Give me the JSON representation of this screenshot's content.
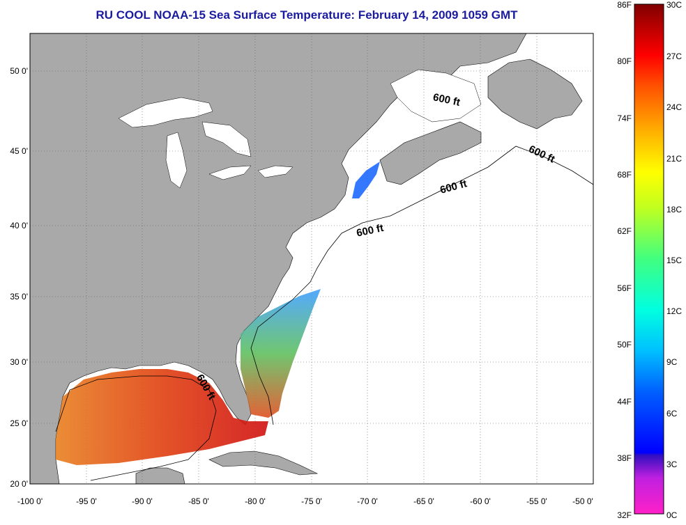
{
  "title": "RU COOL  NOAA-15  Sea Surface Temperature:  February 14, 2009 1059 GMT",
  "map": {
    "lon_range": [
      -100,
      -50
    ],
    "lat_range": [
      20,
      52.5
    ],
    "lon_ticks": [
      "-100 0'",
      "-95 0'",
      "-90 0'",
      "-85 0'",
      "-80 0'",
      "-75 0'",
      "-70 0'",
      "-65 0'",
      "-60 0'",
      "-55 0'",
      "-50 0'"
    ],
    "lat_ticks": [
      "20 0'",
      "25 0'",
      "30 0'",
      "35 0'",
      "40 0'",
      "45 0'",
      "50 0'"
    ],
    "contour_label": "600 ft",
    "colors": {
      "land": "#a9a9a9",
      "ocean": "#ffffff",
      "lakes": "#ffffff"
    }
  },
  "colorbar": {
    "fahrenheit_labels": [
      "86F",
      "80F",
      "74F",
      "68F",
      "62F",
      "56F",
      "50F",
      "44F",
      "38F",
      "32F"
    ],
    "celsius_labels": [
      "30C",
      "27C",
      "24C",
      "21C",
      "18C",
      "15C",
      "12C",
      "9C",
      "6C",
      "3C",
      "0C"
    ],
    "range_c": [
      0,
      30
    ]
  }
}
